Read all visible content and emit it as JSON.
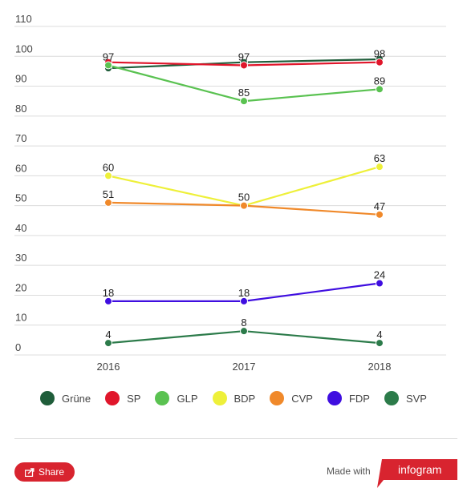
{
  "chart_data": {
    "type": "line",
    "x": [
      "2016",
      "2017",
      "2018"
    ],
    "ylim": [
      0,
      110
    ],
    "yticks": [
      0,
      10,
      20,
      30,
      40,
      50,
      60,
      70,
      80,
      90,
      100,
      110
    ],
    "grid": true,
    "legend_position": "bottom",
    "series": [
      {
        "name": "Grüne",
        "color": "#1f5d3a",
        "values": [
          96,
          98,
          99
        ],
        "labels": [
          null,
          null,
          null
        ]
      },
      {
        "name": "SP",
        "color": "#e0162b",
        "values": [
          98,
          97,
          98
        ],
        "labels": [
          null,
          97,
          98
        ]
      },
      {
        "name": "GLP",
        "color": "#5ac251",
        "values": [
          97,
          85,
          89
        ],
        "labels": [
          97,
          85,
          89
        ]
      },
      {
        "name": "BDP",
        "color": "#eef03a",
        "values": [
          60,
          50,
          63
        ],
        "labels": [
          60,
          null,
          63
        ]
      },
      {
        "name": "CVP",
        "color": "#f0892a",
        "values": [
          51,
          50,
          47
        ],
        "labels": [
          51,
          50,
          47
        ]
      },
      {
        "name": "FDP",
        "color": "#3f0ee0",
        "values": [
          18,
          18,
          24
        ],
        "labels": [
          18,
          18,
          24
        ]
      },
      {
        "name": "SVP",
        "color": "#2c7b4a",
        "values": [
          4,
          8,
          4
        ],
        "labels": [
          4,
          8,
          4
        ]
      }
    ]
  },
  "footer": {
    "share_label": "Share",
    "made_with_label": "Made with",
    "brand_label": "infogram"
  },
  "colors": {
    "accent": "#d8242f",
    "grid": "#dcdcdc"
  }
}
